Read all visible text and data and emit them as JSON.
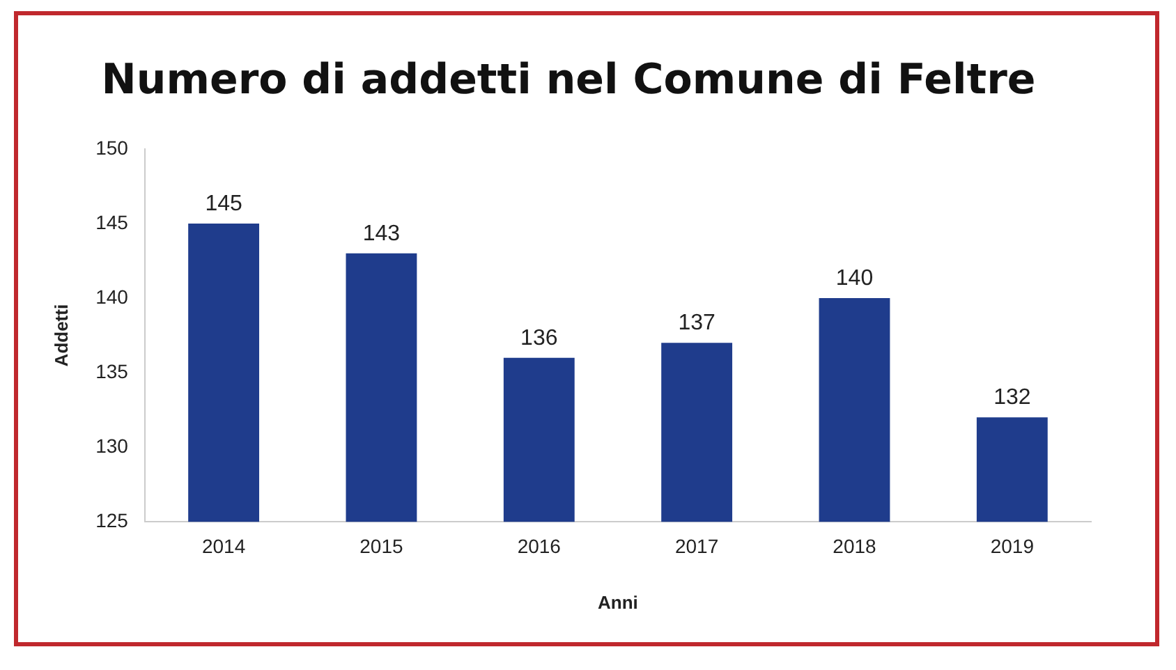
{
  "chart_data": {
    "type": "bar",
    "title": "Numero di addetti nel Comune di Feltre",
    "xlabel": "Anni",
    "ylabel": "Addetti",
    "categories": [
      "2014",
      "2015",
      "2016",
      "2017",
      "2018",
      "2019"
    ],
    "values": [
      145,
      143,
      136,
      137,
      140,
      132
    ],
    "color": "#1f3c8c",
    "ylim": [
      125,
      150
    ],
    "yticks": [
      125,
      130,
      135,
      140,
      145,
      150
    ],
    "grid": false,
    "data_labels": true,
    "legend": false
  }
}
